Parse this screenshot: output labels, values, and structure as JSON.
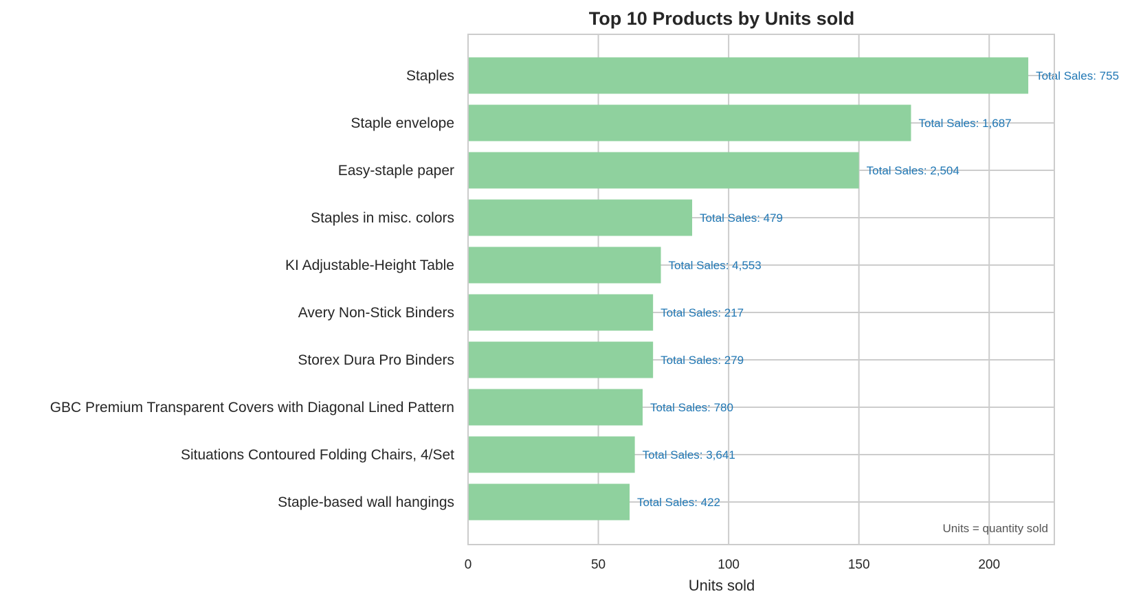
{
  "chart_data": {
    "type": "bar",
    "orientation": "horizontal",
    "title": "Top 10 Products by Units sold",
    "xlabel": "Units sold",
    "ylabel": "",
    "xlim": [
      0,
      225
    ],
    "xticks": [
      0,
      50,
      100,
      150,
      200
    ],
    "grid": true,
    "categories": [
      "Staples",
      "Staple envelope",
      "Easy-staple paper",
      "Staples in misc. colors",
      "KI Adjustable-Height Table",
      "Avery Non-Stick Binders",
      "Storex Dura Pro Binders",
      "GBC Premium Transparent Covers with Diagonal Lined Pattern",
      "Situations Contoured Folding Chairs, 4/Set",
      "Staple-based wall hangings"
    ],
    "values": [
      215,
      170,
      150,
      86,
      74,
      71,
      71,
      67,
      64,
      62
    ],
    "data_labels": [
      "Total Sales: 755",
      "Total Sales: 1,687",
      "Total Sales: 2,504",
      "Total Sales: 479",
      "Total Sales: 4,553",
      "Total Sales: 217",
      "Total Sales: 279",
      "Total Sales: 780",
      "Total Sales: 3,641",
      "Total Sales: 422"
    ],
    "annotation": "Units = quantity sold",
    "colors": {
      "bar": "#8fd19e",
      "data_label": "#2077b4",
      "grid": "#cccccc",
      "spine": "#cccccc"
    }
  }
}
